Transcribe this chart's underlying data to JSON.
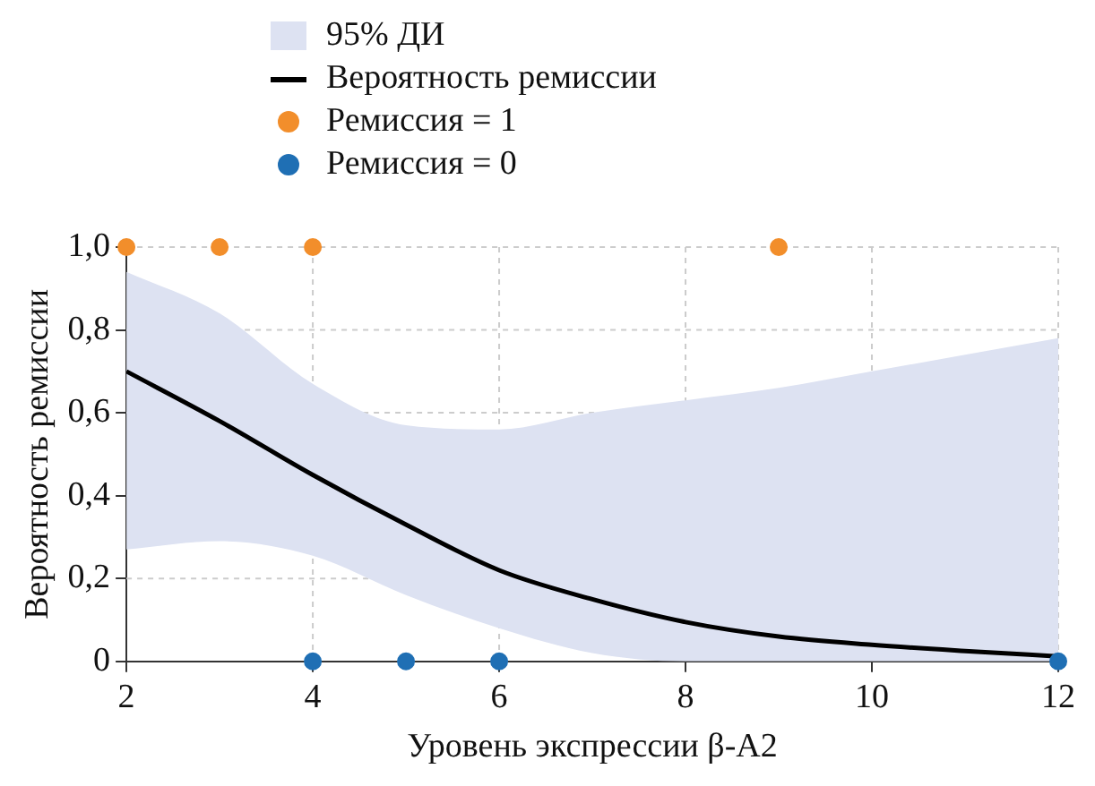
{
  "chart_data": {
    "type": "line",
    "xlabel": "Уровень экспрессии β-A2",
    "ylabel": "Вероятность ремиссии",
    "xlim": [
      2,
      12
    ],
    "xticks": [
      2,
      4,
      6,
      8,
      10,
      12
    ],
    "ylim": [
      0,
      1
    ],
    "yticks": [
      0,
      {
        "value": 0.2,
        "label": "0,2"
      },
      {
        "value": 0.4,
        "label": "0,4"
      },
      {
        "value": 0.6,
        "label": "0,6"
      },
      {
        "value": 0.8,
        "label": "0,8"
      },
      {
        "value": 1,
        "label": "1,0"
      }
    ],
    "grid": true,
    "legend": "top",
    "line_style": "solid",
    "annotations": [
      "95% ДИ"
    ],
    "series": [
      {
        "name": "Вероятность ремиссии",
        "type": "line",
        "marker": "none",
        "color": "#000000",
        "x": [
          2,
          3,
          4,
          5,
          6,
          7,
          8,
          9,
          10,
          11,
          12
        ],
        "values": [
          0.7,
          0.58,
          0.45,
          0.33,
          0.22,
          0.15,
          0.095,
          0.06,
          0.04,
          0.025,
          0.012
        ],
        "lower": [
          0.27,
          0.29,
          0.255,
          0.16,
          0.08,
          0.02,
          0,
          0,
          0,
          0,
          0
        ],
        "upper": [
          0.94,
          0.84,
          0.67,
          0.57,
          0.56,
          0.6,
          0.63,
          0.66,
          0.7,
          0.74,
          0.78
        ]
      },
      {
        "name": "Ремиссия = 1",
        "type": "scatter",
        "marker": "circle",
        "color": "#f28e2b",
        "x": [
          2,
          3,
          4,
          9
        ],
        "values": [
          1,
          1,
          1,
          1
        ]
      },
      {
        "name": "Ремиссия = 0",
        "type": "scatter",
        "marker": "circle",
        "color": "#1f6fb4",
        "x": [
          4,
          5,
          6,
          12
        ],
        "values": [
          0,
          0,
          0,
          0
        ]
      }
    ]
  }
}
